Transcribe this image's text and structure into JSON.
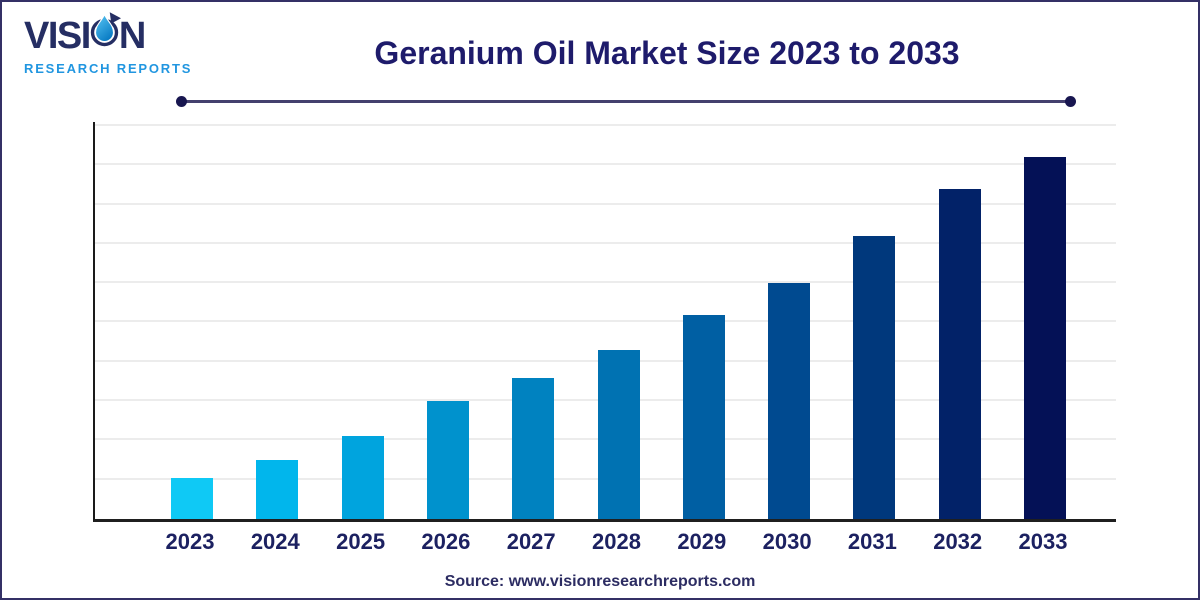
{
  "brand": {
    "name_main_pre": "VISI",
    "name_main_post": "N",
    "name_sub": "RESEARCH REPORTS",
    "colors": {
      "main": "#252e63",
      "sub": "#2196e0"
    }
  },
  "header": {
    "title": "Geranium Oil Market Size 2023 to 2033"
  },
  "footer": {
    "source": "Source: www.visionresearchreports.com"
  },
  "chart_data": {
    "type": "bar",
    "title": "Geranium Oil Market Size 2023 to 2033",
    "categories": [
      "2023",
      "2024",
      "2025",
      "2026",
      "2027",
      "2028",
      "2029",
      "2030",
      "2031",
      "2032",
      "2033"
    ],
    "values": [
      1.05,
      1.5,
      2.1,
      3.0,
      3.6,
      4.3,
      5.2,
      6.0,
      7.2,
      8.4,
      9.2
    ],
    "value_note": "relative units; y-axis has no tick labels in the figure",
    "xlabel": "",
    "ylabel": "",
    "ylim": [
      0,
      10.1
    ],
    "grid": "horizontal light-gray lines at each unit, behind bars",
    "legend": "none",
    "bar_colors": [
      "#0fc9f5",
      "#01b6ec",
      "#00a4de",
      "#0092cd",
      "#0082c0",
      "#0072b2",
      "#005fa3",
      "#004a90",
      "#00387c",
      "#022268",
      "#041156"
    ],
    "gridline_color": "#ececec",
    "axis_color": "#1a1a1a",
    "label_color": "#1c2161"
  }
}
